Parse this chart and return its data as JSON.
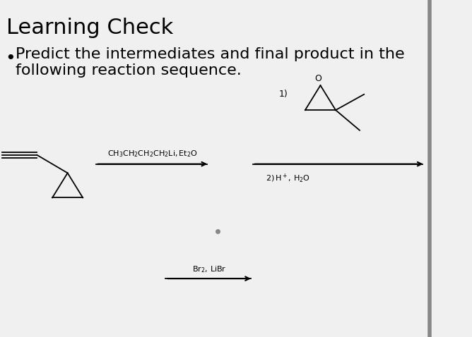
{
  "title": "Learning Check",
  "bullet_text": "Predict the intermediates and final product in the\nfollowing reaction sequence.",
  "background_color": "#f0f0f0",
  "text_color": "#000000",
  "title_fontsize": 22,
  "bullet_fontsize": 16,
  "reagent_fontsize": 9,
  "arrow_color": "#000000",
  "line_color": "#000000",
  "fig_width": 6.68,
  "fig_height": 4.78,
  "dpi": 100
}
